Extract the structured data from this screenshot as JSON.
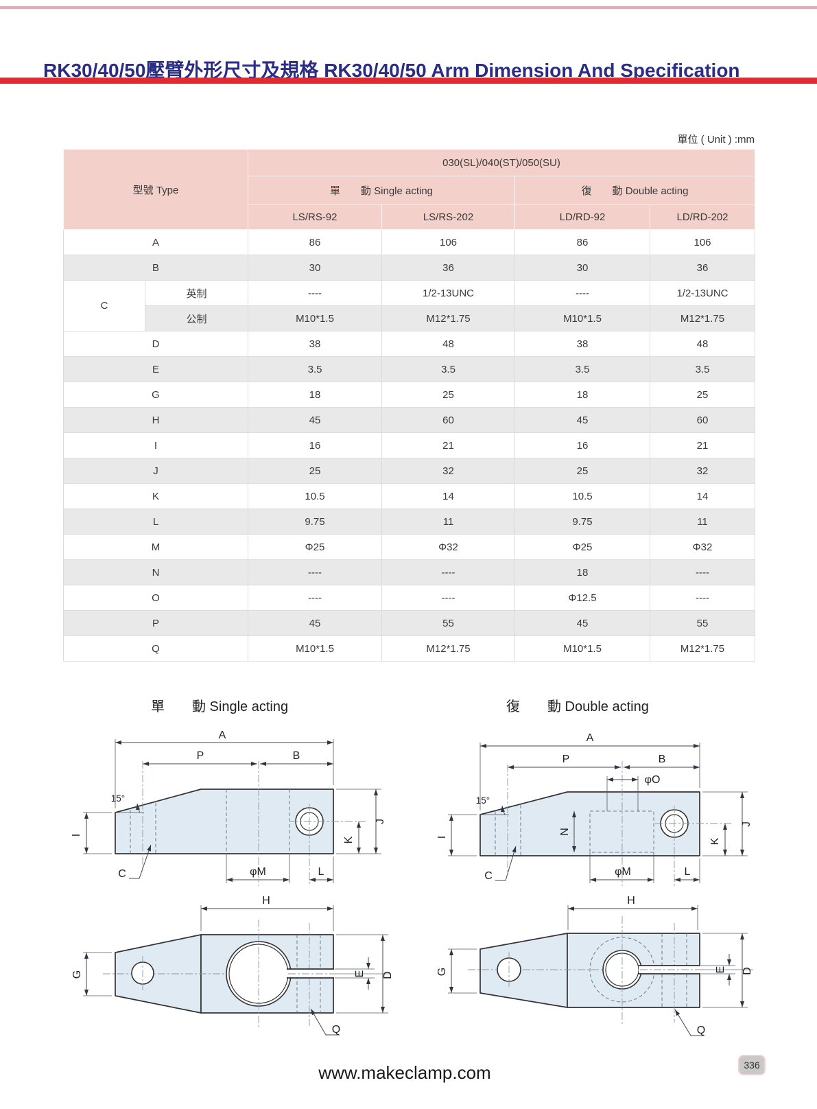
{
  "page": {
    "title": "RK30/40/50壓臂外形尺寸及規格 RK30/40/50 Arm Dimension And Specification",
    "unit_label": "單位 ( Unit ) :mm",
    "footer_url": "www.makeclamp.com",
    "page_number": "336"
  },
  "table": {
    "type_header": "型號  Type",
    "group_header": "030(SL)/040(ST)/050(SU)",
    "single_acting_header": "單　　動  Single acting",
    "double_acting_header": "復　　動  Double acting",
    "model_headers": [
      "LS/RS-92",
      "LS/RS-202",
      "LD/RD-92",
      "LD/RD-202"
    ],
    "rows": [
      {
        "label": "A",
        "values": [
          "86",
          "106",
          "86",
          "106"
        ]
      },
      {
        "label": "B",
        "values": [
          "30",
          "36",
          "30",
          "36"
        ]
      },
      {
        "label": "C",
        "sub": "英制",
        "group_start": true,
        "values": [
          "----",
          "1/2-13UNC",
          "----",
          "1/2-13UNC"
        ]
      },
      {
        "label": "C",
        "sub": "公制",
        "values": [
          "M10*1.5",
          "M12*1.75",
          "M10*1.5",
          "M12*1.75"
        ]
      },
      {
        "label": "D",
        "values": [
          "38",
          "48",
          "38",
          "48"
        ]
      },
      {
        "label": "E",
        "values": [
          "3.5",
          "3.5",
          "3.5",
          "3.5"
        ]
      },
      {
        "label": "G",
        "values": [
          "18",
          "25",
          "18",
          "25"
        ]
      },
      {
        "label": "H",
        "values": [
          "45",
          "60",
          "45",
          "60"
        ]
      },
      {
        "label": "I",
        "values": [
          "16",
          "21",
          "16",
          "21"
        ]
      },
      {
        "label": "J",
        "values": [
          "25",
          "32",
          "25",
          "32"
        ]
      },
      {
        "label": "K",
        "values": [
          "10.5",
          "14",
          "10.5",
          "14"
        ]
      },
      {
        "label": "L",
        "values": [
          "9.75",
          "11",
          "9.75",
          "11"
        ]
      },
      {
        "label": "M",
        "values": [
          "Φ25",
          "Φ32",
          "Φ25",
          "Φ32"
        ]
      },
      {
        "label": "N",
        "values": [
          "----",
          "----",
          "18",
          "----"
        ]
      },
      {
        "label": "O",
        "values": [
          "----",
          "----",
          "Φ12.5",
          "----"
        ]
      },
      {
        "label": "P",
        "values": [
          "45",
          "55",
          "45",
          "55"
        ]
      },
      {
        "label": "Q",
        "values": [
          "M10*1.5",
          "M12*1.75",
          "M10*1.5",
          "M12*1.75"
        ]
      }
    ]
  },
  "drawings": {
    "single_heading": "單　　動 Single acting",
    "double_heading": "復　　動 Double acting",
    "labels": {
      "A": "A",
      "B": "B",
      "C": "C",
      "D": "D",
      "E": "E",
      "G": "G",
      "H": "H",
      "I": "I",
      "J": "J",
      "K": "K",
      "L": "L",
      "N": "N",
      "P": "P",
      "Q": "Q",
      "phi_m": "φM",
      "phi_o": "φO",
      "angle": "15°"
    }
  },
  "colors": {
    "accent_red": "#e8272e",
    "title_navy": "#2b2d84",
    "header_pink": "#f3d0ca",
    "row_gray": "#e9e9e9",
    "drawing_fill": "#dfeaf2",
    "line_pink": "#e6a9b4"
  }
}
